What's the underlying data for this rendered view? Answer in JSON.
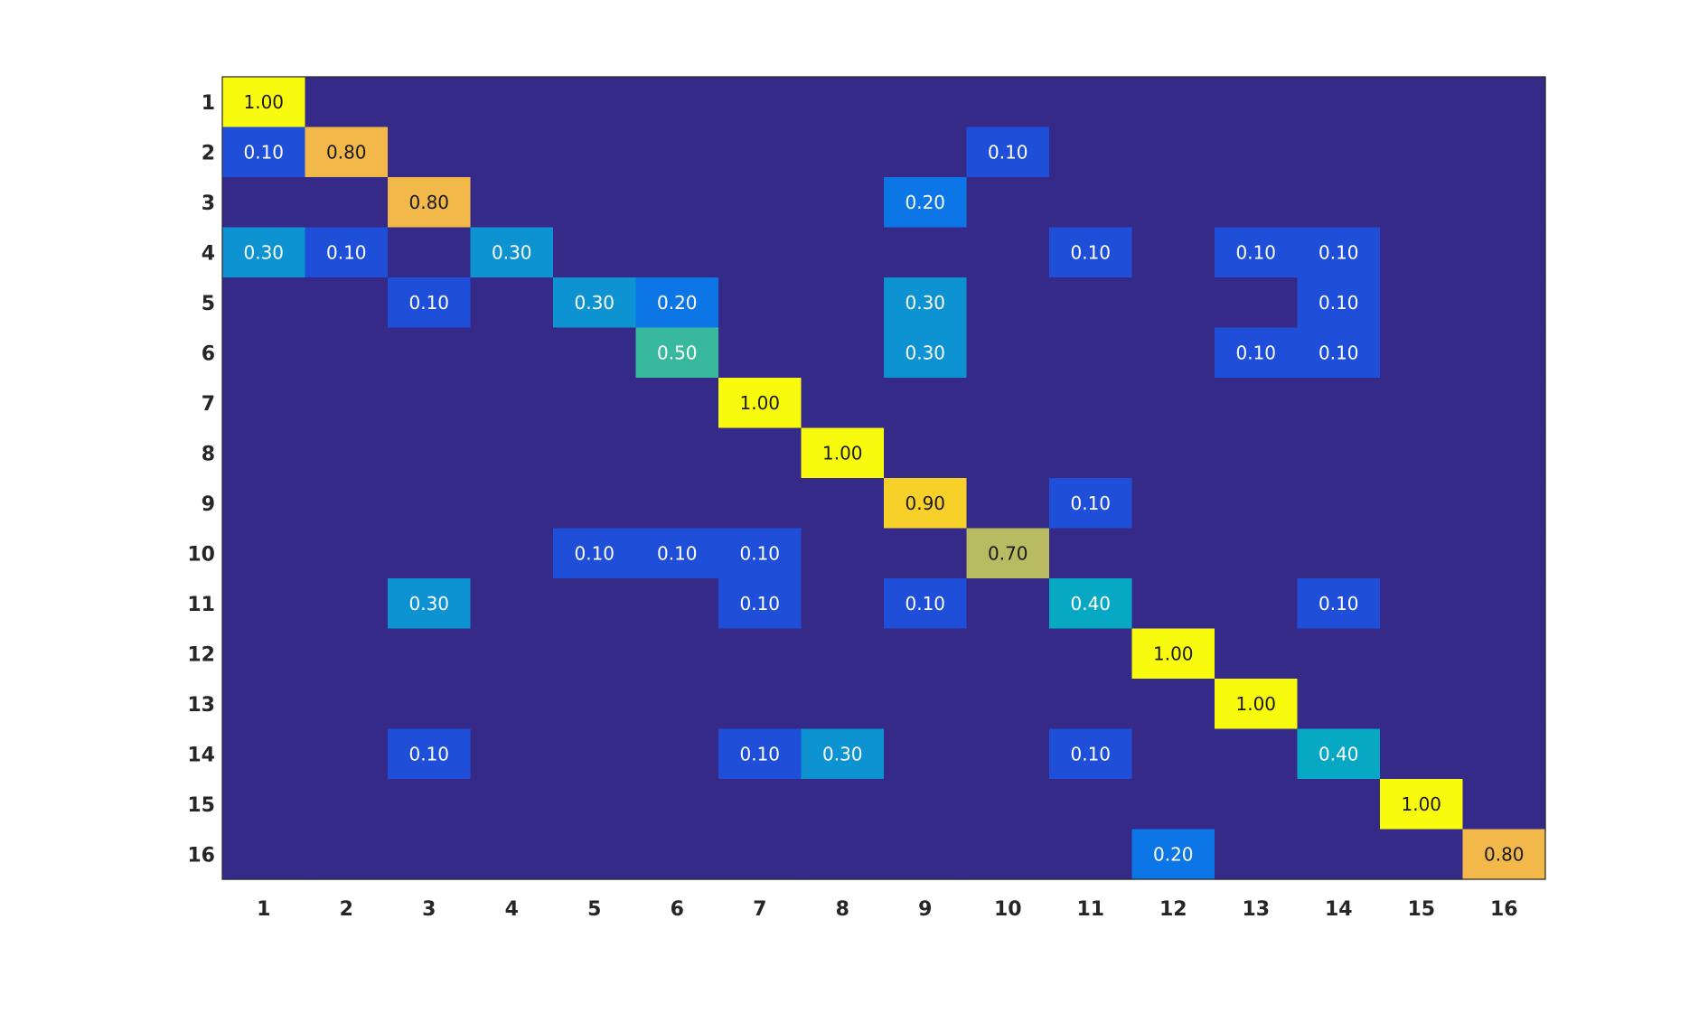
{
  "chart_data": {
    "type": "heatmap",
    "title": "",
    "xlabel": "",
    "ylabel": "",
    "x_categories": [
      "1",
      "2",
      "3",
      "4",
      "5",
      "6",
      "7",
      "8",
      "9",
      "10",
      "11",
      "12",
      "13",
      "14",
      "15",
      "16"
    ],
    "y_categories": [
      "1",
      "2",
      "3",
      "4",
      "5",
      "6",
      "7",
      "8",
      "9",
      "10",
      "11",
      "12",
      "13",
      "14",
      "15",
      "16"
    ],
    "value_range": [
      0,
      1
    ],
    "colormap": "parula",
    "value_format": "0.00",
    "hide_zero_labels": true,
    "values": [
      [
        1.0,
        0,
        0,
        0,
        0,
        0,
        0,
        0,
        0,
        0,
        0,
        0,
        0,
        0,
        0,
        0
      ],
      [
        0.1,
        0.8,
        0,
        0,
        0,
        0,
        0,
        0,
        0,
        0.1,
        0,
        0,
        0,
        0,
        0,
        0
      ],
      [
        0,
        0,
        0.8,
        0,
        0,
        0,
        0,
        0,
        0.2,
        0,
        0,
        0,
        0,
        0,
        0,
        0
      ],
      [
        0.3,
        0.1,
        0,
        0.3,
        0,
        0,
        0,
        0,
        0,
        0,
        0.1,
        0,
        0.1,
        0.1,
        0,
        0
      ],
      [
        0,
        0,
        0.1,
        0,
        0.3,
        0.2,
        0,
        0,
        0.3,
        0,
        0,
        0,
        0,
        0.1,
        0,
        0
      ],
      [
        0,
        0,
        0,
        0,
        0,
        0.5,
        0,
        0,
        0.3,
        0,
        0,
        0,
        0.1,
        0.1,
        0,
        0
      ],
      [
        0,
        0,
        0,
        0,
        0,
        0,
        1.0,
        0,
        0,
        0,
        0,
        0,
        0,
        0,
        0,
        0
      ],
      [
        0,
        0,
        0,
        0,
        0,
        0,
        0,
        1.0,
        0,
        0,
        0,
        0,
        0,
        0,
        0,
        0
      ],
      [
        0,
        0,
        0,
        0,
        0,
        0,
        0,
        0,
        0.9,
        0,
        0.1,
        0,
        0,
        0,
        0,
        0
      ],
      [
        0,
        0,
        0,
        0,
        0.1,
        0.1,
        0.1,
        0,
        0,
        0.7,
        0,
        0,
        0,
        0,
        0,
        0
      ],
      [
        0,
        0,
        0.3,
        0,
        0,
        0,
        0.1,
        0,
        0.1,
        0,
        0.4,
        0,
        0,
        0.1,
        0,
        0
      ],
      [
        0,
        0,
        0,
        0,
        0,
        0,
        0,
        0,
        0,
        0,
        0,
        1.0,
        0,
        0,
        0,
        0
      ],
      [
        0,
        0,
        0,
        0,
        0,
        0,
        0,
        0,
        0,
        0,
        0,
        0,
        1.0,
        0,
        0,
        0
      ],
      [
        0,
        0,
        0.1,
        0,
        0,
        0,
        0.1,
        0.3,
        0,
        0,
        0.1,
        0,
        0,
        0.4,
        0,
        0
      ],
      [
        0,
        0,
        0,
        0,
        0,
        0,
        0,
        0,
        0,
        0,
        0,
        0,
        0,
        0,
        1.0,
        0
      ],
      [
        0,
        0,
        0,
        0,
        0,
        0,
        0,
        0,
        0,
        0,
        0,
        0.2,
        0,
        0,
        0,
        0.8
      ]
    ],
    "color_stops": {
      "0.0": "#352a87",
      "0.1": "#1f4fd8",
      "0.2": "#0d76e6",
      "0.3": "#0d93d2",
      "0.4": "#07a8c4",
      "0.5": "#38b99e",
      "0.6": "#7dbb79",
      "0.7": "#b8bb61",
      "0.8": "#f2b84a",
      "0.9": "#f8d02a",
      "1.0": "#f9fb0e"
    }
  }
}
